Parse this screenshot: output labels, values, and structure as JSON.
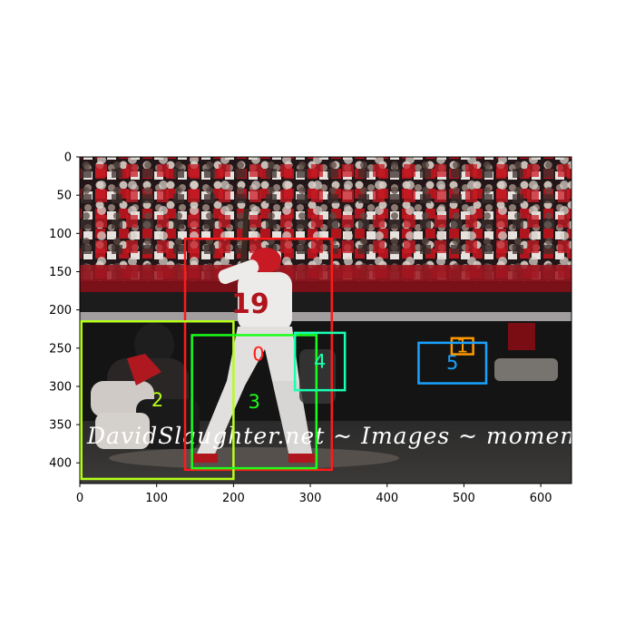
{
  "image": {
    "description_kind": "baseball batter and catcher with object detection boxes",
    "watermark_text": "DavidSlaughter.net ~ Images ~ moments",
    "width": 640,
    "height": 427
  },
  "axes": {
    "x_ticks": [
      0,
      100,
      200,
      300,
      400,
      500,
      600
    ],
    "y_ticks": [
      0,
      50,
      100,
      150,
      200,
      250,
      300,
      350,
      400
    ]
  },
  "detections": [
    {
      "id": "0",
      "label": "0",
      "color": "#ff1a1a",
      "x1": 137,
      "y1": 107,
      "x2": 328,
      "y2": 409
    },
    {
      "id": "1",
      "label": "1",
      "color": "#ff9900",
      "x1": 484,
      "y1": 237,
      "x2": 512,
      "y2": 258
    },
    {
      "id": "2",
      "label": "2",
      "color": "#b5ff1a",
      "x1": 2,
      "y1": 215,
      "x2": 200,
      "y2": 421
    },
    {
      "id": "3",
      "label": "3",
      "color": "#1aff1a",
      "x1": 146,
      "y1": 233,
      "x2": 308,
      "y2": 407
    },
    {
      "id": "4",
      "label": "4",
      "color": "#1affb0",
      "x1": 280,
      "y1": 230,
      "x2": 345,
      "y2": 305
    },
    {
      "id": "5",
      "label": "5",
      "color": "#1aa3ff",
      "x1": 441,
      "y1": 243,
      "x2": 529,
      "y2": 296
    }
  ]
}
